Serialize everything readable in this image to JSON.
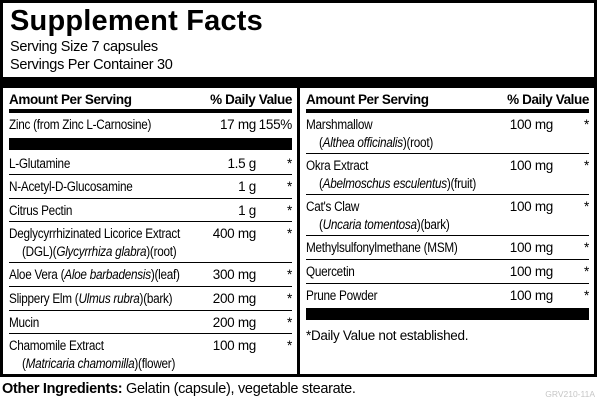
{
  "title": "Supplement Facts",
  "serving": {
    "size": "Serving Size 7 capsules",
    "per_container": "Servings Per Container 30"
  },
  "header": {
    "amount": "Amount Per Serving",
    "dv": "% Daily Value"
  },
  "columns": {
    "left": {
      "rows": [
        {
          "line1": [
            {
              "text": "Zinc (from Zinc L-Carnosine)",
              "italic": false
            }
          ],
          "amount": "17 mg",
          "dv": "155%"
        },
        {
          "type": "bar"
        },
        {
          "line1": [
            {
              "text": "L-Glutamine",
              "italic": false
            }
          ],
          "amount": "1.5 g",
          "dv": "*"
        },
        {
          "line1": [
            {
              "text": "N-Acetyl-D-Glucosamine",
              "italic": false
            }
          ],
          "amount": "1 g",
          "dv": "*"
        },
        {
          "line1": [
            {
              "text": "Citrus Pectin",
              "italic": false
            }
          ],
          "amount": "1 g",
          "dv": "*"
        },
        {
          "line1": [
            {
              "text": "Deglycyrrhizinated Licorice Extract",
              "italic": false
            }
          ],
          "line2": [
            {
              "text": "(DGL)(",
              "italic": false
            },
            {
              "text": "Glycyrrhiza glabra",
              "italic": true
            },
            {
              "text": ")(root)",
              "italic": false
            }
          ],
          "amount": "400 mg",
          "dv": "*"
        },
        {
          "line1": [
            {
              "text": "Aloe Vera (",
              "italic": false
            },
            {
              "text": "Aloe barbadensis",
              "italic": true
            },
            {
              "text": ")(leaf)",
              "italic": false
            }
          ],
          "amount": "300 mg",
          "dv": "*"
        },
        {
          "line1": [
            {
              "text": "Slippery Elm (",
              "italic": false
            },
            {
              "text": "Ulmus rubra",
              "italic": true
            },
            {
              "text": ")(bark)",
              "italic": false
            }
          ],
          "amount": "200 mg",
          "dv": "*"
        },
        {
          "line1": [
            {
              "text": "Mucin",
              "italic": false
            }
          ],
          "amount": "200 mg",
          "dv": "*"
        },
        {
          "line1": [
            {
              "text": "Chamomile Extract",
              "italic": false
            }
          ],
          "line2": [
            {
              "text": "(",
              "italic": false
            },
            {
              "text": "Matricaria chamomilla",
              "italic": true
            },
            {
              "text": ")(flower)",
              "italic": false
            }
          ],
          "amount": "100 mg",
          "dv": "*"
        }
      ]
    },
    "right": {
      "rows": [
        {
          "line1": [
            {
              "text": "Marshmallow",
              "italic": false
            }
          ],
          "line2": [
            {
              "text": "(",
              "italic": false
            },
            {
              "text": "Althea officinalis",
              "italic": true
            },
            {
              "text": ")(root)",
              "italic": false
            }
          ],
          "amount": "100 mg",
          "dv": "*"
        },
        {
          "line1": [
            {
              "text": "Okra Extract",
              "italic": false
            }
          ],
          "line2": [
            {
              "text": "(",
              "italic": false
            },
            {
              "text": "Abelmoschus esculentus",
              "italic": true
            },
            {
              "text": ")(fruit)",
              "italic": false
            }
          ],
          "amount": "100 mg",
          "dv": "*"
        },
        {
          "line1": [
            {
              "text": "Cat's Claw",
              "italic": false
            }
          ],
          "line2": [
            {
              "text": "(",
              "italic": false
            },
            {
              "text": "Uncaria tomentosa",
              "italic": true
            },
            {
              "text": ")(bark)",
              "italic": false
            }
          ],
          "amount": "100 mg",
          "dv": "*"
        },
        {
          "line1": [
            {
              "text": "Methylsulfonylmethane (MSM)",
              "italic": false
            }
          ],
          "amount": "100 mg",
          "dv": "*"
        },
        {
          "line1": [
            {
              "text": "Quercetin",
              "italic": false
            }
          ],
          "amount": "100 mg",
          "dv": "*"
        },
        {
          "line1": [
            {
              "text": "Prune Powder",
              "italic": false
            }
          ],
          "amount": "100 mg",
          "dv": "*"
        },
        {
          "type": "bar"
        },
        {
          "type": "note",
          "text": "*Daily Value not established."
        }
      ]
    }
  },
  "footer": {
    "label": "Other Ingredients:",
    "text": " Gelatin (capsule), vegetable stearate.",
    "code": "GRV210-11A"
  },
  "colors": {
    "text": "#000000",
    "bar": "#000000",
    "background": "#ffffff",
    "code_gray": "#c6c6c6"
  }
}
